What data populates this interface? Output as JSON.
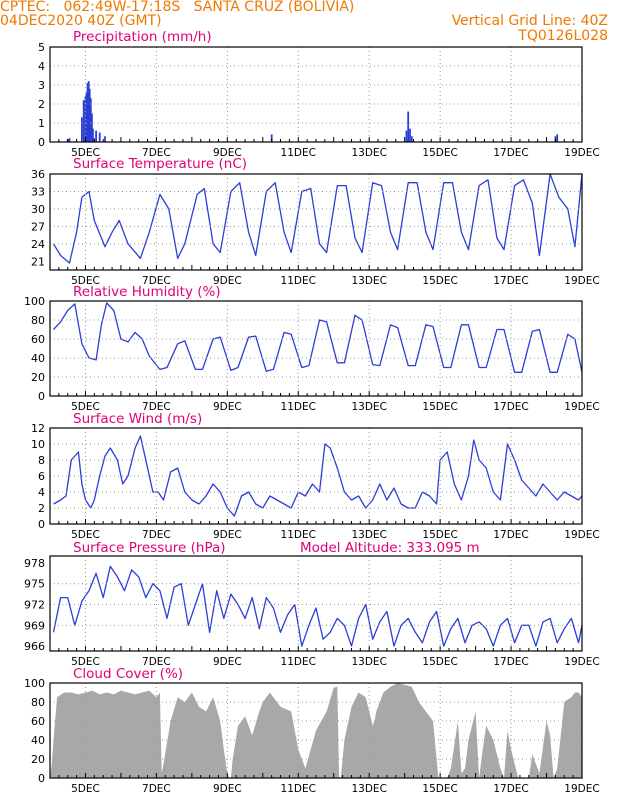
{
  "header": {
    "line1_left": "CPTEC:   062:49W-17:18S   SANTA CRUZ (BOLIVIA)",
    "line2_left": "04DEC2020 40Z (GMT)",
    "line2_right": "Vertical Grid Line: 40Z",
    "line3_right": "TQ0126L028"
  },
  "colors": {
    "header": "#f07800",
    "titles": "#e0007a",
    "series": "#2b3fd6",
    "cloud": "#a8a8a8",
    "grid": "#9a9a9a"
  },
  "date_labels": [
    "5DEC",
    "7DEC",
    "9DEC",
    "11DEC",
    "13DEC",
    "15DEC",
    "17DEC",
    "19DEC"
  ],
  "chart_data": [
    {
      "id": "precip",
      "type": "bar",
      "title": "Precipitation (mm/h)",
      "ylim": [
        0,
        5
      ],
      "yticks": [
        "0",
        "1",
        "2",
        "3",
        "4",
        "5"
      ],
      "x_days": [
        4.5,
        4.55,
        4.9,
        4.95,
        5.0,
        5.03,
        5.06,
        5.09,
        5.12,
        5.15,
        5.18,
        5.21,
        5.24,
        5.3,
        5.4,
        5.55,
        10.25,
        14.05,
        14.1,
        14.15,
        14.2,
        18.25,
        18.3
      ],
      "values": [
        0.15,
        0.2,
        1.3,
        2.2,
        2.4,
        2.6,
        3.1,
        3.2,
        2.8,
        2.3,
        1.5,
        0.7,
        0.2,
        0.6,
        0.5,
        0.3,
        0.4,
        0.6,
        1.6,
        0.7,
        0.3,
        0.3,
        0.4
      ]
    },
    {
      "id": "temp",
      "type": "line",
      "title": "Surface Temperature (nC)",
      "ylim": [
        19.5,
        36
      ],
      "yticks": [
        "21",
        "24",
        "27",
        "30",
        "33",
        "36"
      ],
      "x_days": [
        4.1,
        4.3,
        4.55,
        4.75,
        4.9,
        5.1,
        5.25,
        5.55,
        5.75,
        5.95,
        6.2,
        6.55,
        6.8,
        7.1,
        7.35,
        7.6,
        7.8,
        8.15,
        8.35,
        8.6,
        8.8,
        9.1,
        9.35,
        9.6,
        9.8,
        10.1,
        10.35,
        10.6,
        10.8,
        11.1,
        11.35,
        11.6,
        11.8,
        12.1,
        12.35,
        12.6,
        12.8,
        13.1,
        13.35,
        13.6,
        13.8,
        14.1,
        14.35,
        14.6,
        14.8,
        15.1,
        15.35,
        15.6,
        15.8,
        16.1,
        16.35,
        16.6,
        16.8,
        17.1,
        17.35,
        17.6,
        17.8,
        18.1,
        18.35,
        18.6,
        18.8,
        19.0
      ],
      "values": [
        24,
        22,
        20.7,
        26,
        32,
        33,
        28,
        23.5,
        26,
        28,
        24,
        21.5,
        26,
        32.5,
        30,
        21.5,
        24,
        32.5,
        33.5,
        24,
        22.5,
        33,
        34.5,
        26,
        22,
        33,
        34.5,
        26,
        22.5,
        33,
        33.5,
        24,
        22.5,
        34,
        34,
        25,
        22.5,
        34.5,
        34,
        26,
        23,
        34.5,
        34.5,
        26,
        23,
        34.5,
        34.5,
        26,
        23,
        34,
        35,
        25,
        23,
        34,
        35,
        31,
        22,
        36,
        32,
        30,
        23.5,
        36
      ]
    },
    {
      "id": "rh",
      "type": "line",
      "title": "Relative Humidity (%)",
      "ylim": [
        0,
        100
      ],
      "yticks": [
        "0",
        "20",
        "40",
        "60",
        "80",
        "100"
      ],
      "x_days": [
        4.1,
        4.3,
        4.5,
        4.7,
        4.9,
        5.1,
        5.3,
        5.45,
        5.6,
        5.8,
        6.0,
        6.2,
        6.4,
        6.6,
        6.8,
        7.1,
        7.3,
        7.6,
        7.8,
        8.1,
        8.3,
        8.6,
        8.8,
        9.1,
        9.3,
        9.6,
        9.8,
        10.1,
        10.3,
        10.6,
        10.8,
        11.1,
        11.3,
        11.6,
        11.8,
        12.1,
        12.3,
        12.6,
        12.8,
        13.1,
        13.3,
        13.6,
        13.8,
        14.1,
        14.3,
        14.6,
        14.8,
        15.1,
        15.3,
        15.6,
        15.8,
        16.1,
        16.3,
        16.6,
        16.8,
        17.1,
        17.3,
        17.6,
        17.8,
        18.1,
        18.3,
        18.6,
        18.8,
        19.0
      ],
      "values": [
        70,
        78,
        90,
        97,
        55,
        40,
        38,
        75,
        98,
        90,
        60,
        57,
        67,
        60,
        42,
        28,
        30,
        55,
        58,
        28,
        28,
        60,
        62,
        27,
        30,
        62,
        63,
        26,
        28,
        67,
        65,
        30,
        32,
        80,
        78,
        35,
        35,
        85,
        80,
        33,
        32,
        75,
        72,
        32,
        32,
        75,
        73,
        30,
        30,
        75,
        75,
        30,
        30,
        70,
        70,
        25,
        25,
        68,
        70,
        25,
        25,
        65,
        60,
        25
      ]
    },
    {
      "id": "wind",
      "type": "line",
      "title": "Surface Wind (m/s)",
      "ylim": [
        0,
        12
      ],
      "yticks": [
        "0",
        "2",
        "4",
        "6",
        "8",
        "10",
        "12"
      ],
      "x_days": [
        4.1,
        4.3,
        4.45,
        4.6,
        4.8,
        4.9,
        5.0,
        5.15,
        5.25,
        5.4,
        5.55,
        5.7,
        5.9,
        6.05,
        6.2,
        6.4,
        6.55,
        6.7,
        6.9,
        7.05,
        7.2,
        7.4,
        7.6,
        7.8,
        8.0,
        8.2,
        8.4,
        8.6,
        8.8,
        9.0,
        9.2,
        9.4,
        9.6,
        9.8,
        10.0,
        10.2,
        10.4,
        10.6,
        10.8,
        11.0,
        11.2,
        11.4,
        11.6,
        11.75,
        11.9,
        12.1,
        12.3,
        12.5,
        12.7,
        12.9,
        13.1,
        13.3,
        13.5,
        13.7,
        13.9,
        14.1,
        14.3,
        14.5,
        14.7,
        14.9,
        15.0,
        15.2,
        15.4,
        15.6,
        15.8,
        15.95,
        16.1,
        16.3,
        16.5,
        16.7,
        16.9,
        17.1,
        17.3,
        17.5,
        17.7,
        17.9,
        18.1,
        18.3,
        18.5,
        18.7,
        18.9,
        19.0
      ],
      "values": [
        2.5,
        3,
        3.5,
        8,
        9,
        5,
        3,
        2,
        3,
        6,
        8.5,
        9.5,
        8,
        5,
        6,
        9.5,
        11,
        8,
        4,
        4,
        3,
        6.5,
        7,
        4,
        3,
        2.5,
        3.5,
        5,
        4,
        2,
        1,
        3.5,
        4,
        2.5,
        2,
        3.5,
        3,
        2.5,
        2,
        4,
        3.5,
        5,
        4,
        10,
        9.5,
        7,
        4,
        3,
        3.5,
        2,
        3,
        5,
        3,
        4.5,
        2.5,
        2,
        2,
        4,
        3.5,
        2.5,
        8,
        9,
        5,
        3,
        6,
        10.5,
        8,
        7,
        4,
        3,
        10,
        8,
        5.5,
        4.5,
        3.5,
        5,
        4,
        3,
        4,
        3.5,
        3,
        3.5
      ]
    },
    {
      "id": "pressure",
      "type": "line",
      "title": "Surface Pressure (hPa)",
      "annotation": "Model Altitude: 333.095 m",
      "ylim": [
        965.3,
        979
      ],
      "yticks": [
        "966",
        "969",
        "972",
        "975",
        "978"
      ],
      "x_days": [
        4.1,
        4.3,
        4.5,
        4.7,
        4.9,
        5.1,
        5.3,
        5.5,
        5.7,
        5.9,
        6.1,
        6.3,
        6.5,
        6.7,
        6.9,
        7.1,
        7.3,
        7.5,
        7.7,
        7.9,
        8.1,
        8.3,
        8.5,
        8.7,
        8.9,
        9.1,
        9.3,
        9.5,
        9.7,
        9.9,
        10.1,
        10.3,
        10.5,
        10.7,
        10.9,
        11.1,
        11.3,
        11.5,
        11.7,
        11.9,
        12.1,
        12.3,
        12.5,
        12.7,
        12.9,
        13.1,
        13.3,
        13.5,
        13.7,
        13.9,
        14.1,
        14.3,
        14.5,
        14.7,
        14.9,
        15.1,
        15.3,
        15.5,
        15.7,
        15.9,
        16.1,
        16.3,
        16.5,
        16.7,
        16.9,
        17.1,
        17.3,
        17.5,
        17.7,
        17.9,
        18.1,
        18.3,
        18.5,
        18.7,
        18.9,
        19.0
      ],
      "values": [
        968,
        973,
        973,
        969,
        972.5,
        974,
        976.5,
        973,
        977.5,
        976,
        974,
        977,
        976,
        973,
        975,
        974,
        970,
        974.5,
        975,
        969,
        972,
        975,
        968,
        974,
        970,
        973.5,
        972,
        970,
        973,
        968.5,
        973,
        971.5,
        968,
        970.5,
        972,
        966,
        969,
        971.5,
        967,
        968,
        970,
        969,
        966,
        970,
        972,
        967,
        969.5,
        971,
        966,
        969,
        970,
        968,
        966.5,
        969.5,
        971,
        966,
        968.5,
        970,
        966.5,
        969,
        969.5,
        968.5,
        966,
        969,
        970,
        966.5,
        969,
        969,
        966,
        969.5,
        970,
        966.5,
        968.5,
        970,
        966.5,
        969
      ]
    },
    {
      "id": "cloud",
      "type": "area",
      "title": "Cloud Cover (%)",
      "ylim": [
        0,
        100
      ],
      "yticks": [
        "0",
        "20",
        "40",
        "60",
        "80",
        "100"
      ],
      "x_days": [
        4.0,
        4.05,
        4.1,
        4.2,
        4.4,
        4.6,
        4.8,
        5.0,
        5.2,
        5.4,
        5.6,
        5.8,
        6.0,
        6.2,
        6.4,
        6.6,
        6.8,
        7.0,
        7.1,
        7.15,
        7.2,
        7.4,
        7.6,
        7.8,
        8.0,
        8.2,
        8.4,
        8.6,
        8.8,
        8.9,
        9.0,
        9.05,
        9.1,
        9.15,
        9.3,
        9.5,
        9.7,
        9.9,
        10.0,
        10.1,
        10.2,
        10.5,
        10.8,
        11.0,
        11.2,
        11.5,
        11.8,
        12.0,
        12.1,
        12.15,
        12.2,
        12.3,
        12.5,
        12.7,
        12.9,
        13.0,
        13.1,
        13.15,
        13.2,
        13.4,
        13.6,
        13.8,
        14.0,
        14.2,
        14.4,
        14.6,
        14.8,
        14.95,
        15.0,
        15.1,
        15.2,
        15.3,
        15.5,
        15.6,
        15.7,
        15.8,
        16.0,
        16.1,
        16.2,
        16.3,
        16.5,
        16.7,
        16.8,
        16.9,
        17.0,
        17.2,
        17.4,
        17.5,
        17.6,
        17.8,
        18.0,
        18.1,
        18.2,
        18.3,
        18.5,
        18.7,
        18.8,
        18.9,
        19.0
      ],
      "values": [
        0,
        15,
        40,
        85,
        90,
        90,
        88,
        90,
        92,
        88,
        90,
        88,
        92,
        90,
        88,
        90,
        92,
        85,
        90,
        5,
        15,
        60,
        85,
        80,
        90,
        75,
        70,
        85,
        60,
        30,
        5,
        0,
        0,
        20,
        55,
        65,
        45,
        70,
        80,
        85,
        90,
        75,
        70,
        30,
        10,
        50,
        70,
        95,
        96,
        0,
        0,
        40,
        75,
        90,
        85,
        70,
        55,
        60,
        70,
        90,
        96,
        100,
        98,
        96,
        80,
        70,
        60,
        0,
        0,
        0,
        0,
        10,
        60,
        5,
        10,
        40,
        70,
        0,
        30,
        55,
        40,
        10,
        0,
        50,
        30,
        0,
        0,
        0,
        25,
        5,
        60,
        45,
        0,
        10,
        80,
        85,
        90,
        90,
        85
      ]
    }
  ]
}
